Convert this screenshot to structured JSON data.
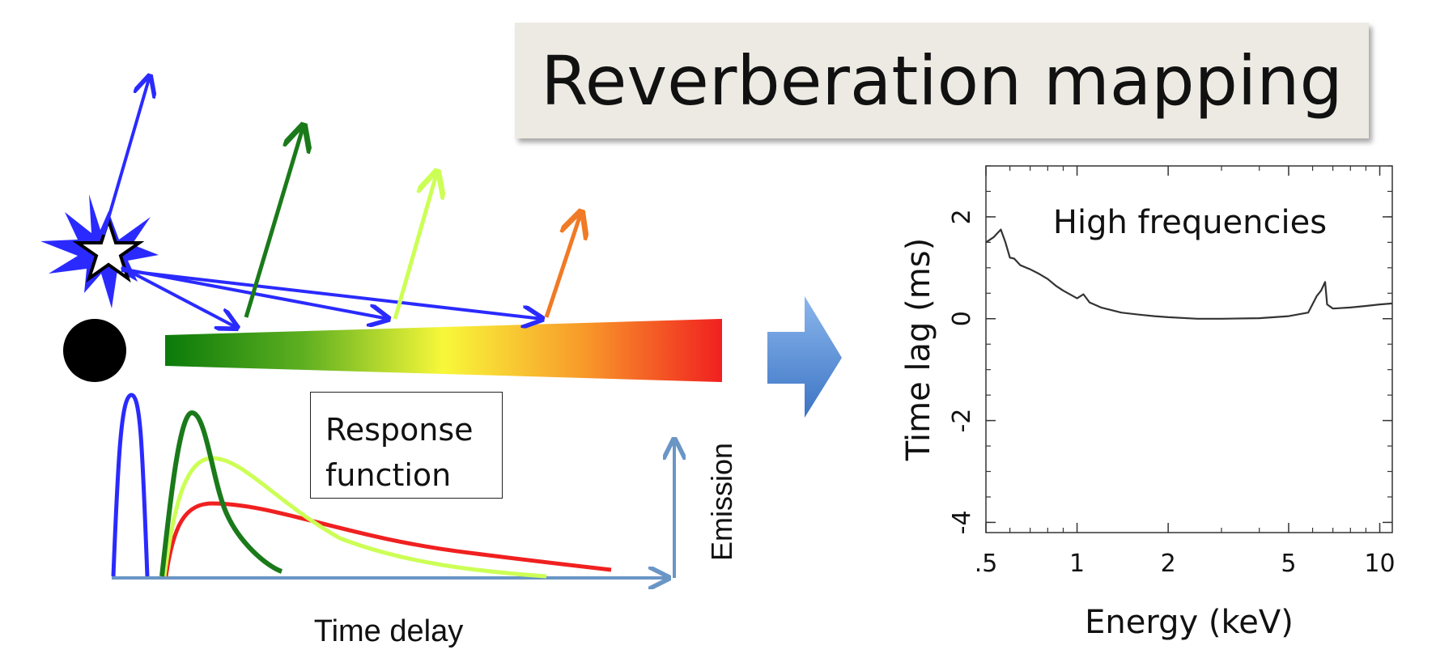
{
  "title": "Reverberation mapping",
  "diagram": {
    "response_box": {
      "line1": "Response",
      "line2": "function"
    },
    "x_axis_label": "Time delay",
    "y_axis_label": "Emission",
    "colors": {
      "source_blue": "#2a2aff",
      "dark_green": "#1a7a1a",
      "light_green": "#ccff55",
      "orange": "#f07a25",
      "red": "#f02020",
      "axis_blue": "#6a96c6",
      "big_arrow": "#6f9fdc"
    }
  },
  "chart_data": {
    "type": "line",
    "annotation": "High frequencies",
    "xlabel": "Energy (keV)",
    "ylabel": "Time lag (ms)",
    "x_scale": "log",
    "xlim": [
      0.5,
      11
    ],
    "ylim": [
      -4.2,
      3.0
    ],
    "x_ticks": [
      0.5,
      1,
      2,
      5,
      10
    ],
    "x_tick_labels": [
      ".5",
      "1",
      "2",
      "5",
      "10"
    ],
    "y_ticks": [
      -4,
      -2,
      0,
      2
    ],
    "y_tick_labels": [
      "-4",
      "-2",
      "0",
      "2"
    ],
    "series": [
      {
        "x": [
          0.5,
          0.53,
          0.56,
          0.58,
          0.6,
          0.62,
          0.65,
          0.7,
          0.75,
          0.8,
          0.85,
          0.9,
          1.0,
          1.05,
          1.1,
          1.2,
          1.4,
          1.6,
          1.8,
          2.0,
          2.5,
          3.0,
          4.0,
          5.0,
          5.8,
          6.2,
          6.4,
          6.6,
          6.7,
          7.0,
          8.0,
          9.0,
          10.0,
          11.0
        ],
        "y": [
          1.5,
          1.6,
          1.75,
          1.5,
          1.2,
          1.18,
          1.05,
          0.97,
          0.88,
          0.78,
          0.65,
          0.55,
          0.4,
          0.48,
          0.32,
          0.22,
          0.12,
          0.08,
          0.05,
          0.03,
          0.0,
          0.0,
          0.01,
          0.05,
          0.12,
          0.45,
          0.55,
          0.72,
          0.28,
          0.2,
          0.22,
          0.25,
          0.28,
          0.3
        ]
      }
    ]
  }
}
